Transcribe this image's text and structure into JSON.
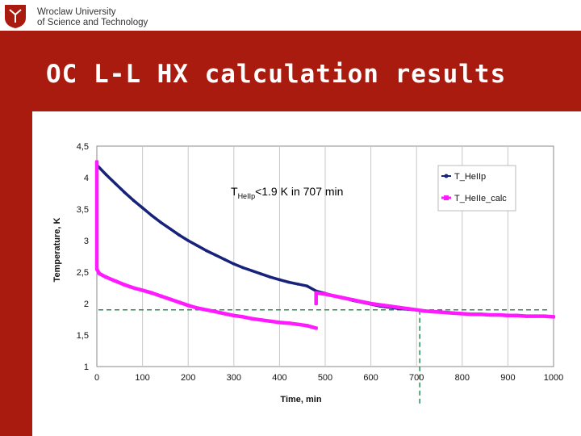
{
  "header": {
    "university_line1": "Wroclaw University",
    "university_line2": "of Science and Technology"
  },
  "slide": {
    "title": "OC L-L HX calculation results"
  },
  "colors": {
    "brand_red": "#a91b0f",
    "series_hellp": "#17227a",
    "series_helle_calc": "#ff1aff",
    "threshold": "#2e8b57"
  },
  "chart_data": {
    "type": "line",
    "xlabel": "Time, min",
    "ylabel": "Temperature, K",
    "xlim": [
      0,
      1000
    ],
    "ylim": [
      1,
      4.5
    ],
    "x_ticks": [
      0,
      100,
      200,
      300,
      400,
      500,
      600,
      700,
      800,
      900,
      1000
    ],
    "y_ticks": [
      1,
      1.5,
      2,
      2.5,
      3,
      3.5,
      4,
      4.5
    ],
    "y_tick_labels": [
      "1",
      "1,5",
      "2",
      "2,5",
      "3",
      "3,5",
      "4",
      "4,5"
    ],
    "grid_vertical": true,
    "legend_position": "top-right",
    "annotation": {
      "text_main": "T",
      "text_sub": "HeIIp",
      "text_rest": "<1.9 K in 707 min"
    },
    "threshold": {
      "y": 1.9,
      "x": 707
    },
    "series": [
      {
        "name": "T_HeIIp",
        "x": [
          0,
          20,
          40,
          60,
          80,
          100,
          120,
          140,
          160,
          180,
          200,
          220,
          240,
          260,
          280,
          300,
          320,
          340,
          360,
          380,
          400,
          420,
          440,
          460,
          480,
          500,
          520,
          540,
          560,
          580,
          600,
          620,
          640,
          660,
          680,
          700,
          720,
          740,
          760,
          780,
          800,
          820,
          840,
          860,
          880,
          900,
          920,
          940,
          960,
          980,
          1000
        ],
        "values": [
          4.2,
          4.05,
          3.91,
          3.77,
          3.64,
          3.52,
          3.4,
          3.29,
          3.19,
          3.09,
          3.0,
          2.92,
          2.84,
          2.77,
          2.7,
          2.63,
          2.57,
          2.52,
          2.47,
          2.42,
          2.38,
          2.34,
          2.31,
          2.28,
          2.2,
          2.16,
          2.12,
          2.09,
          2.05,
          2.02,
          1.99,
          1.96,
          1.94,
          1.92,
          1.91,
          1.9,
          1.88,
          1.87,
          1.86,
          1.85,
          1.84,
          1.83,
          1.83,
          1.82,
          1.82,
          1.81,
          1.81,
          1.8,
          1.8,
          1.8,
          1.79
        ]
      },
      {
        "name": "T_HeIIe_calc",
        "x": [
          0,
          0,
          0,
          0,
          0,
          0,
          0,
          0,
          0,
          0,
          5,
          20,
          40,
          60,
          80,
          100,
          120,
          140,
          160,
          180,
          200,
          220,
          240,
          260,
          280,
          300,
          320,
          340,
          360,
          380,
          400,
          420,
          440,
          460,
          480,
          480,
          480,
          500,
          520,
          540,
          560,
          580,
          600,
          620,
          640,
          660,
          680,
          700,
          720,
          740,
          760,
          780,
          800,
          820,
          840,
          860,
          880,
          900,
          920,
          940,
          960,
          980,
          1000
        ],
        "values": [
          4.25,
          4.1,
          3.9,
          3.7,
          3.5,
          3.3,
          3.1,
          2.9,
          2.7,
          2.55,
          2.48,
          2.42,
          2.36,
          2.3,
          2.25,
          2.21,
          2.17,
          2.12,
          2.07,
          2.02,
          1.97,
          1.93,
          1.9,
          1.87,
          1.84,
          1.81,
          1.79,
          1.76,
          1.74,
          1.72,
          1.7,
          1.69,
          1.67,
          1.65,
          1.61,
          2.0,
          2.17,
          2.15,
          2.12,
          2.09,
          2.06,
          2.03,
          2.0,
          1.98,
          1.96,
          1.94,
          1.92,
          1.9,
          1.88,
          1.87,
          1.86,
          1.85,
          1.84,
          1.83,
          1.83,
          1.82,
          1.82,
          1.81,
          1.81,
          1.8,
          1.8,
          1.8,
          1.79
        ]
      }
    ]
  }
}
